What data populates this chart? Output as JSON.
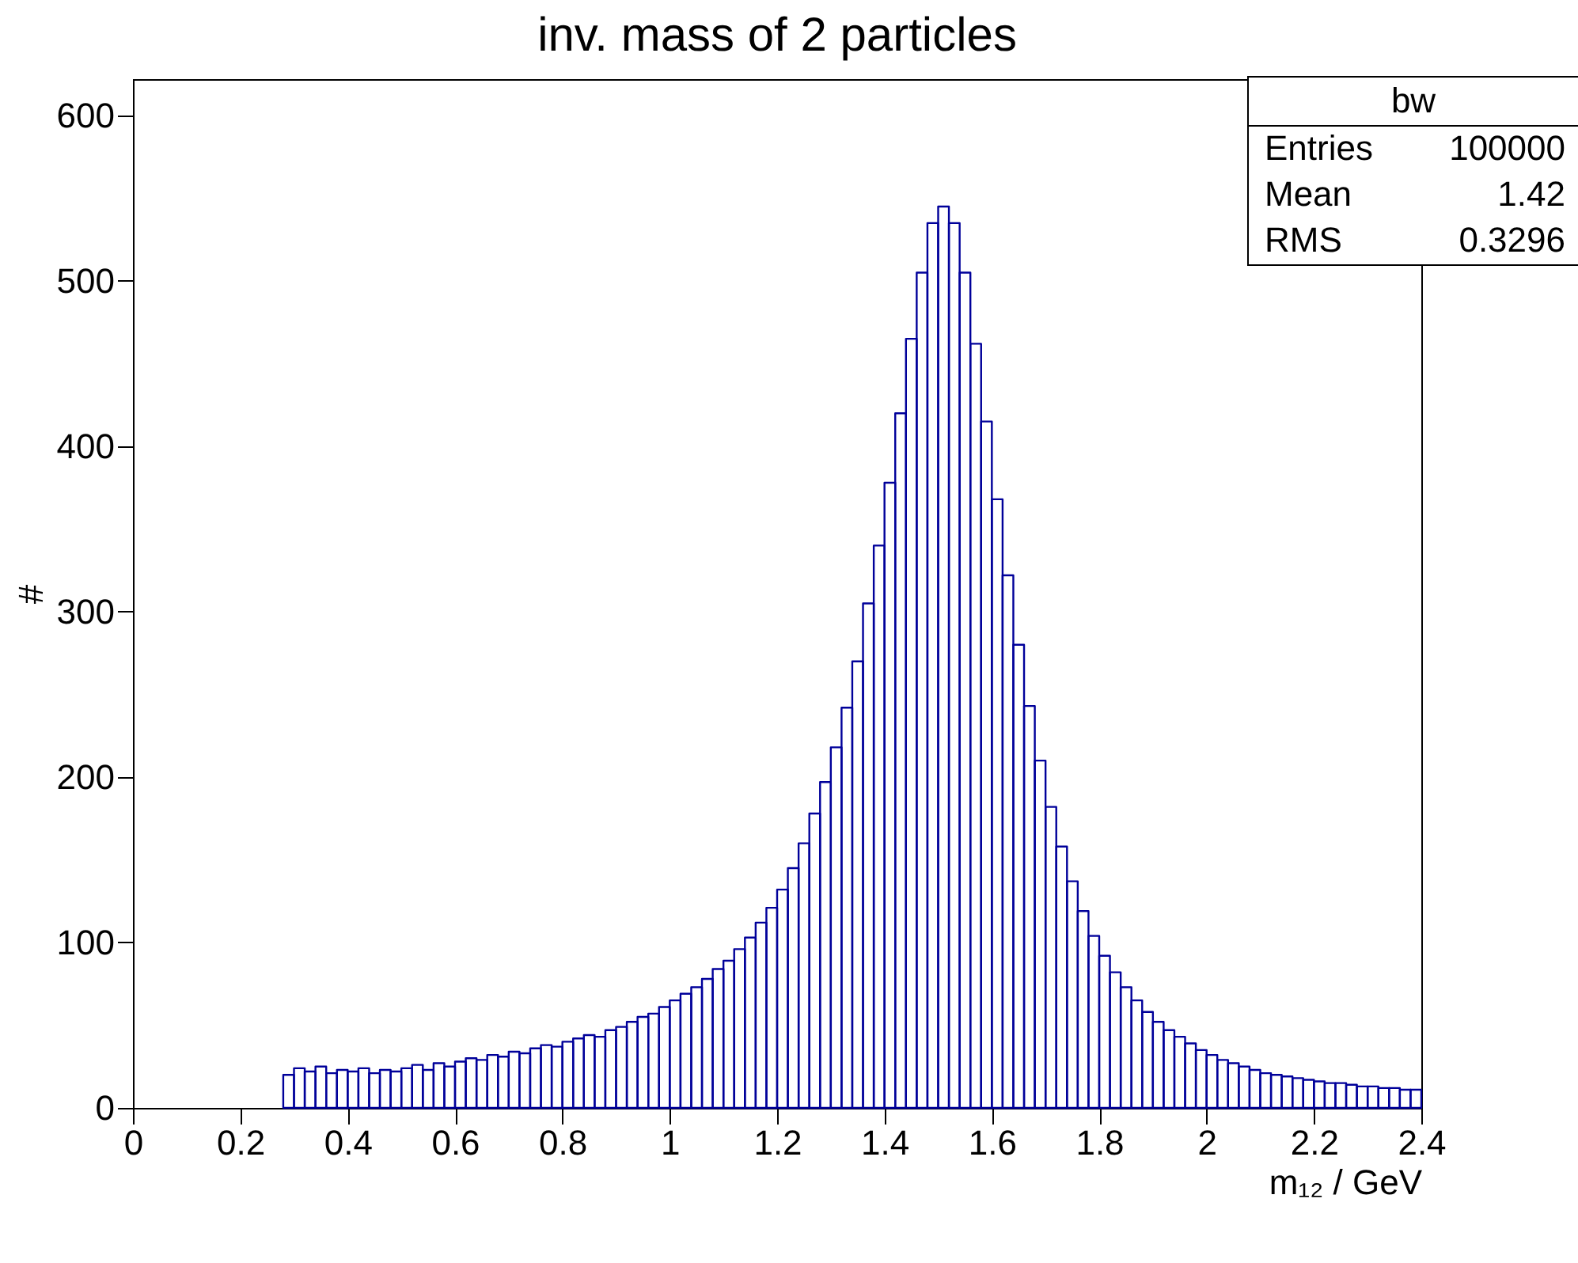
{
  "chart_data": {
    "type": "histogram",
    "title": "inv. mass of 2 particles",
    "xlabel": "m₁₂ / GeV",
    "ylabel": "#",
    "bins": [
      0.28,
      0.3,
      0.32,
      0.34,
      0.36,
      0.38,
      0.4,
      0.42,
      0.44,
      0.46,
      0.48,
      0.5,
      0.52,
      0.54,
      0.56,
      0.58,
      0.6,
      0.62,
      0.64,
      0.66,
      0.68,
      0.7,
      0.72,
      0.74,
      0.76,
      0.78,
      0.8,
      0.82,
      0.84,
      0.86,
      0.88,
      0.9,
      0.92,
      0.94,
      0.96,
      0.98,
      1.0,
      1.02,
      1.04,
      1.06,
      1.08,
      1.1,
      1.12,
      1.14,
      1.16,
      1.18,
      1.2,
      1.22,
      1.24,
      1.26,
      1.28,
      1.3,
      1.32,
      1.34,
      1.36,
      1.38,
      1.4,
      1.42,
      1.44,
      1.46,
      1.48,
      1.5,
      1.52,
      1.54,
      1.56,
      1.58,
      1.6,
      1.62,
      1.64,
      1.66,
      1.68,
      1.7,
      1.72,
      1.74,
      1.76,
      1.78,
      1.8,
      1.82,
      1.84,
      1.86,
      1.88,
      1.9,
      1.92,
      1.94,
      1.96,
      1.98,
      2.0,
      2.02,
      2.04,
      2.06,
      2.08,
      2.1,
      2.12,
      2.14,
      2.16,
      2.18,
      2.2,
      2.22,
      2.24,
      2.26,
      2.28,
      2.3,
      2.32,
      2.34,
      2.36,
      2.38,
      2.4
    ],
    "values": [
      20,
      24,
      22,
      25,
      21,
      23,
      22,
      24,
      21,
      23,
      22,
      24,
      26,
      23,
      27,
      25,
      28,
      30,
      29,
      32,
      31,
      34,
      33,
      36,
      38,
      37,
      40,
      42,
      44,
      43,
      47,
      49,
      52,
      55,
      57,
      61,
      65,
      69,
      73,
      78,
      84,
      89,
      96,
      103,
      112,
      121,
      132,
      145,
      160,
      178,
      197,
      218,
      242,
      270,
      305,
      340,
      378,
      420,
      465,
      505,
      535,
      545,
      535,
      505,
      462,
      415,
      368,
      322,
      280,
      243,
      210,
      182,
      158,
      137,
      119,
      104,
      92,
      82,
      73,
      65,
      58,
      52,
      47,
      43,
      39,
      35,
      32,
      29,
      27,
      25,
      23,
      21,
      20,
      19,
      18,
      17,
      16,
      15,
      15,
      14,
      13,
      13,
      12,
      12,
      11,
      11
    ],
    "color": "#00009a",
    "xlim": [
      0,
      2.4
    ],
    "ylim": [
      0,
      622
    ],
    "xticks": [
      0,
      0.2,
      0.4,
      0.6,
      0.8,
      1,
      1.2,
      1.4,
      1.6,
      1.8,
      2,
      2.2,
      2.4
    ],
    "yticks": [
      0,
      100,
      200,
      300,
      400,
      500,
      600
    ],
    "annotations": [
      "bw",
      "Entries",
      "100000",
      "Mean",
      "1.42",
      "RMS",
      "0.3296"
    ]
  }
}
